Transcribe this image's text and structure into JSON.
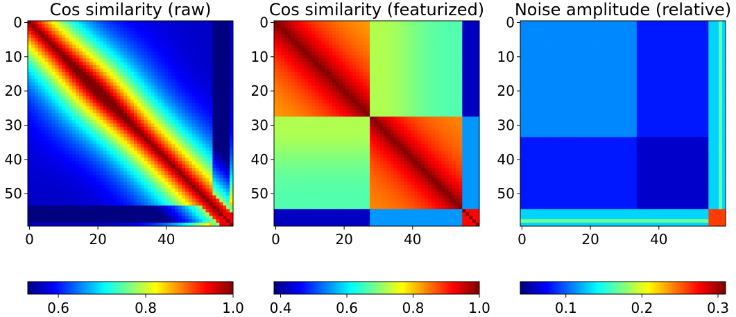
{
  "chart_data": [
    {
      "type": "heatmap",
      "title": "Cos similarity (raw)",
      "matrix_size": 60,
      "xticks": [
        "0",
        "20",
        "40"
      ],
      "yticks": [
        "0",
        "10",
        "20",
        "30",
        "40",
        "50"
      ],
      "xtick_values": [
        0,
        20,
        40
      ],
      "ytick_values": [
        0,
        10,
        20,
        30,
        40,
        50
      ],
      "colormap": "jet",
      "value_range": [
        0.53,
        1.0
      ],
      "colorbar_ticks": [
        "0.6",
        "0.8",
        "1.0"
      ],
      "colorbar_tick_values": [
        0.6,
        0.8,
        1.0
      ],
      "pattern": "diagonal band of high similarity, decaying off-diagonal; low values near rows/cols 55-58"
    },
    {
      "type": "heatmap",
      "title": "Cos similarity (featurized)",
      "matrix_size": 60,
      "xticks": [
        "0",
        "20",
        "40"
      ],
      "yticks": [
        "0",
        "10",
        "20",
        "30",
        "40",
        "50"
      ],
      "xtick_values": [
        0,
        20,
        40
      ],
      "ytick_values": [
        0,
        10,
        20,
        30,
        40,
        50
      ],
      "colormap": "jet",
      "value_range": [
        0.38,
        1.0
      ],
      "colorbar_ticks": [
        "0.4",
        "0.6",
        "0.8",
        "1.0"
      ],
      "colorbar_tick_values": [
        0.4,
        0.6,
        0.8,
        1.0
      ],
      "pattern": "two blocks (0-27 and 28-54) of high similarity; low band at rows/cols 55-58"
    },
    {
      "type": "heatmap",
      "title": "Noise amplitude (relative)",
      "matrix_size": 60,
      "xticks": [
        "0",
        "20",
        "40"
      ],
      "yticks": [
        "0",
        "10",
        "20",
        "30",
        "40",
        "50"
      ],
      "xtick_values": [
        0,
        20,
        40
      ],
      "ytick_values": [
        0,
        10,
        20,
        30,
        40,
        50
      ],
      "colormap": "jet",
      "value_range": [
        0.04,
        0.31
      ],
      "colorbar_ticks": [
        "0.1",
        "0.2",
        "0.3"
      ],
      "colorbar_tick_values": [
        0.1,
        0.2,
        0.3
      ],
      "pattern": "mostly low (~0.1); block 34-54 lowest (~0.05); edge rows/cols 55-59 higher (0.15-0.3)"
    }
  ]
}
